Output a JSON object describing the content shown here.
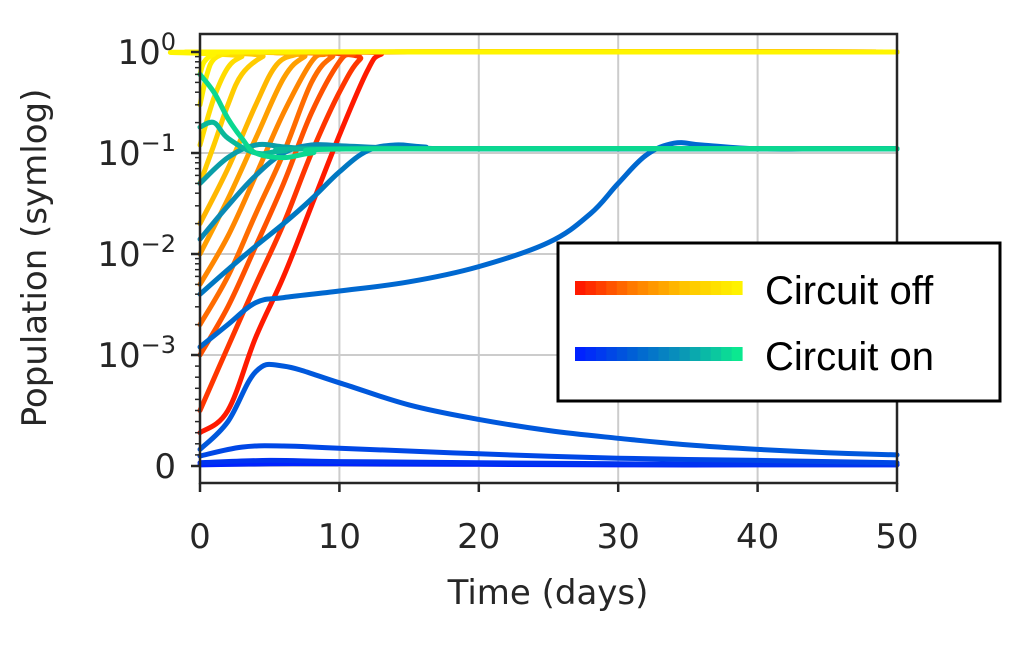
{
  "chart_data": {
    "type": "line",
    "xlabel": "Time (days)",
    "ylabel": "Population (symlog)",
    "xlim": [
      0,
      50
    ],
    "ylim_scale": "symlog",
    "x_ticks": [
      "0",
      "10",
      "20",
      "30",
      "40",
      "50"
    ],
    "y_ticks": [
      {
        "label": "0"
      },
      {
        "base": "10",
        "exp": "−3"
      },
      {
        "base": "10",
        "exp": "−2"
      },
      {
        "base": "10",
        "exp": "−1"
      },
      {
        "base": "10",
        "exp": "0"
      }
    ],
    "grid": true,
    "legend": {
      "placement": "center-right",
      "entries": [
        {
          "label": "Circuit off",
          "gradient": [
            "#ff1a00",
            "#ff7a00",
            "#ffc400",
            "#fff200"
          ]
        },
        {
          "label": "Circuit on",
          "gradient": [
            "#0022ff",
            "#005fd6",
            "#0a99b5",
            "#0be890"
          ]
        }
      ]
    },
    "series": [
      {
        "group": "off",
        "color": "#ff1a00",
        "x": [
          0,
          2,
          4,
          6,
          8,
          10,
          12,
          13,
          15,
          50
        ],
        "y": [
          0.0003,
          0.0005,
          0.0015,
          0.006,
          0.03,
          0.15,
          0.65,
          0.95,
          1.0,
          1.0
        ]
      },
      {
        "group": "off",
        "color": "#ff3600",
        "x": [
          0,
          2,
          4,
          6,
          8,
          10,
          11.5,
          13,
          50
        ],
        "y": [
          0.0005,
          0.0012,
          0.005,
          0.02,
          0.1,
          0.4,
          0.85,
          1.0,
          1.0
        ]
      },
      {
        "group": "off",
        "color": "#ff5200",
        "x": [
          0,
          2,
          4,
          6,
          8,
          10,
          11,
          12.5,
          50
        ],
        "y": [
          0.001,
          0.003,
          0.012,
          0.05,
          0.25,
          0.8,
          0.95,
          1.0,
          1.0
        ]
      },
      {
        "group": "off",
        "color": "#ff6c00",
        "x": [
          0,
          2,
          4,
          6,
          8,
          9.5,
          11,
          50
        ],
        "y": [
          0.002,
          0.006,
          0.025,
          0.1,
          0.5,
          0.9,
          1.0,
          1.0
        ]
      },
      {
        "group": "off",
        "color": "#ff8600",
        "x": [
          0,
          2,
          4,
          6,
          8,
          9,
          10,
          50
        ],
        "y": [
          0.005,
          0.015,
          0.06,
          0.25,
          0.8,
          0.95,
          1.0,
          1.0
        ]
      },
      {
        "group": "off",
        "color": "#ff9f00",
        "x": [
          0,
          2,
          4,
          6,
          7.5,
          9,
          50
        ],
        "y": [
          0.01,
          0.035,
          0.14,
          0.55,
          0.9,
          1.0,
          1.0
        ]
      },
      {
        "group": "off",
        "color": "#ffb700",
        "x": [
          0,
          2,
          4,
          5.5,
          7,
          8,
          50
        ],
        "y": [
          0.02,
          0.07,
          0.3,
          0.75,
          0.95,
          1.0,
          1.0
        ]
      },
      {
        "group": "off",
        "color": "#ffcc00",
        "x": [
          0,
          1,
          2,
          3,
          4.5,
          6,
          50
        ],
        "y": [
          0.05,
          0.12,
          0.3,
          0.6,
          0.9,
          1.0,
          1.0
        ]
      },
      {
        "group": "off",
        "color": "#ffdc00",
        "x": [
          0,
          1,
          2,
          3,
          4,
          50
        ],
        "y": [
          0.12,
          0.35,
          0.7,
          0.9,
          1.0,
          1.0
        ]
      },
      {
        "group": "off",
        "color": "#ffeb00",
        "x": [
          0,
          0.5,
          1,
          2,
          3,
          50
        ],
        "y": [
          0.3,
          0.6,
          0.85,
          0.98,
          1.0,
          1.0
        ]
      },
      {
        "group": "off",
        "color": "#fff500",
        "x": [
          0,
          0.3,
          1,
          2,
          50
        ],
        "y": [
          0.6,
          0.8,
          0.95,
          1.0,
          1.0
        ]
      },
      {
        "group": "on",
        "color": "#0022ff",
        "x": [
          0,
          5,
          10,
          20,
          30,
          40,
          50
        ],
        "y": [
          1e-05,
          2e-05,
          2e-05,
          1.5e-05,
          1e-05,
          1e-05,
          1e-05
        ]
      },
      {
        "group": "on",
        "color": "#0033f0",
        "x": [
          0,
          5,
          10,
          20,
          30,
          40,
          50
        ],
        "y": [
          3e-05,
          5e-05,
          4e-05,
          3e-05,
          2e-05,
          1.5e-05,
          1.2e-05
        ]
      },
      {
        "group": "on",
        "color": "#0047e6",
        "x": [
          0,
          3,
          6,
          10,
          20,
          30,
          40,
          50
        ],
        "y": [
          9e-05,
          0.00017,
          0.00018,
          0.00016,
          0.00011,
          7e-05,
          5e-05,
          3e-05
        ]
      },
      {
        "group": "on",
        "color": "#0058dc",
        "x": [
          0,
          2,
          4,
          6,
          10,
          15,
          20,
          25,
          30,
          35,
          40,
          45,
          50
        ],
        "y": [
          0.00015,
          0.0004,
          0.00085,
          0.0009,
          0.00075,
          0.00055,
          0.00042,
          0.00032,
          0.00025,
          0.00019,
          0.00015,
          0.00012,
          0.0001
        ]
      },
      {
        "group": "on",
        "color": "#0068d0",
        "x": [
          0,
          2,
          4,
          6,
          10,
          15,
          20,
          25,
          28,
          30,
          32,
          34,
          36,
          40,
          45,
          50
        ],
        "y": [
          0.0012,
          0.002,
          0.0033,
          0.0037,
          0.0043,
          0.0053,
          0.0075,
          0.013,
          0.025,
          0.05,
          0.095,
          0.125,
          0.12,
          0.11,
          0.11,
          0.11
        ]
      },
      {
        "group": "on",
        "color": "#0078c2",
        "x": [
          0,
          2,
          4,
          6,
          8,
          10,
          12,
          14,
          16,
          20,
          50
        ],
        "y": [
          0.004,
          0.007,
          0.012,
          0.02,
          0.035,
          0.065,
          0.105,
          0.12,
          0.115,
          0.11,
          0.11
        ]
      },
      {
        "group": "on",
        "color": "#0a8ab5",
        "x": [
          0,
          2,
          4,
          6,
          8,
          10,
          14,
          20,
          50
        ],
        "y": [
          0.014,
          0.03,
          0.06,
          0.1,
          0.12,
          0.118,
          0.112,
          0.11,
          0.11
        ]
      },
      {
        "group": "on",
        "color": "#0a9ea8",
        "x": [
          0,
          2,
          4,
          6,
          8,
          12,
          20,
          50
        ],
        "y": [
          0.05,
          0.09,
          0.12,
          0.115,
          0.11,
          0.11,
          0.11,
          0.11
        ]
      },
      {
        "group": "on",
        "color": "#0ab89a",
        "x": [
          0,
          1,
          2,
          4,
          6,
          10,
          50
        ],
        "y": [
          0.18,
          0.2,
          0.14,
          0.1,
          0.105,
          0.11,
          0.11
        ]
      },
      {
        "group": "on",
        "color": "#0bd890",
        "x": [
          0,
          1,
          2,
          3,
          4,
          6,
          8,
          12,
          50
        ],
        "y": [
          0.6,
          0.4,
          0.22,
          0.14,
          0.1,
          0.09,
          0.1,
          0.11,
          0.11
        ]
      }
    ]
  }
}
